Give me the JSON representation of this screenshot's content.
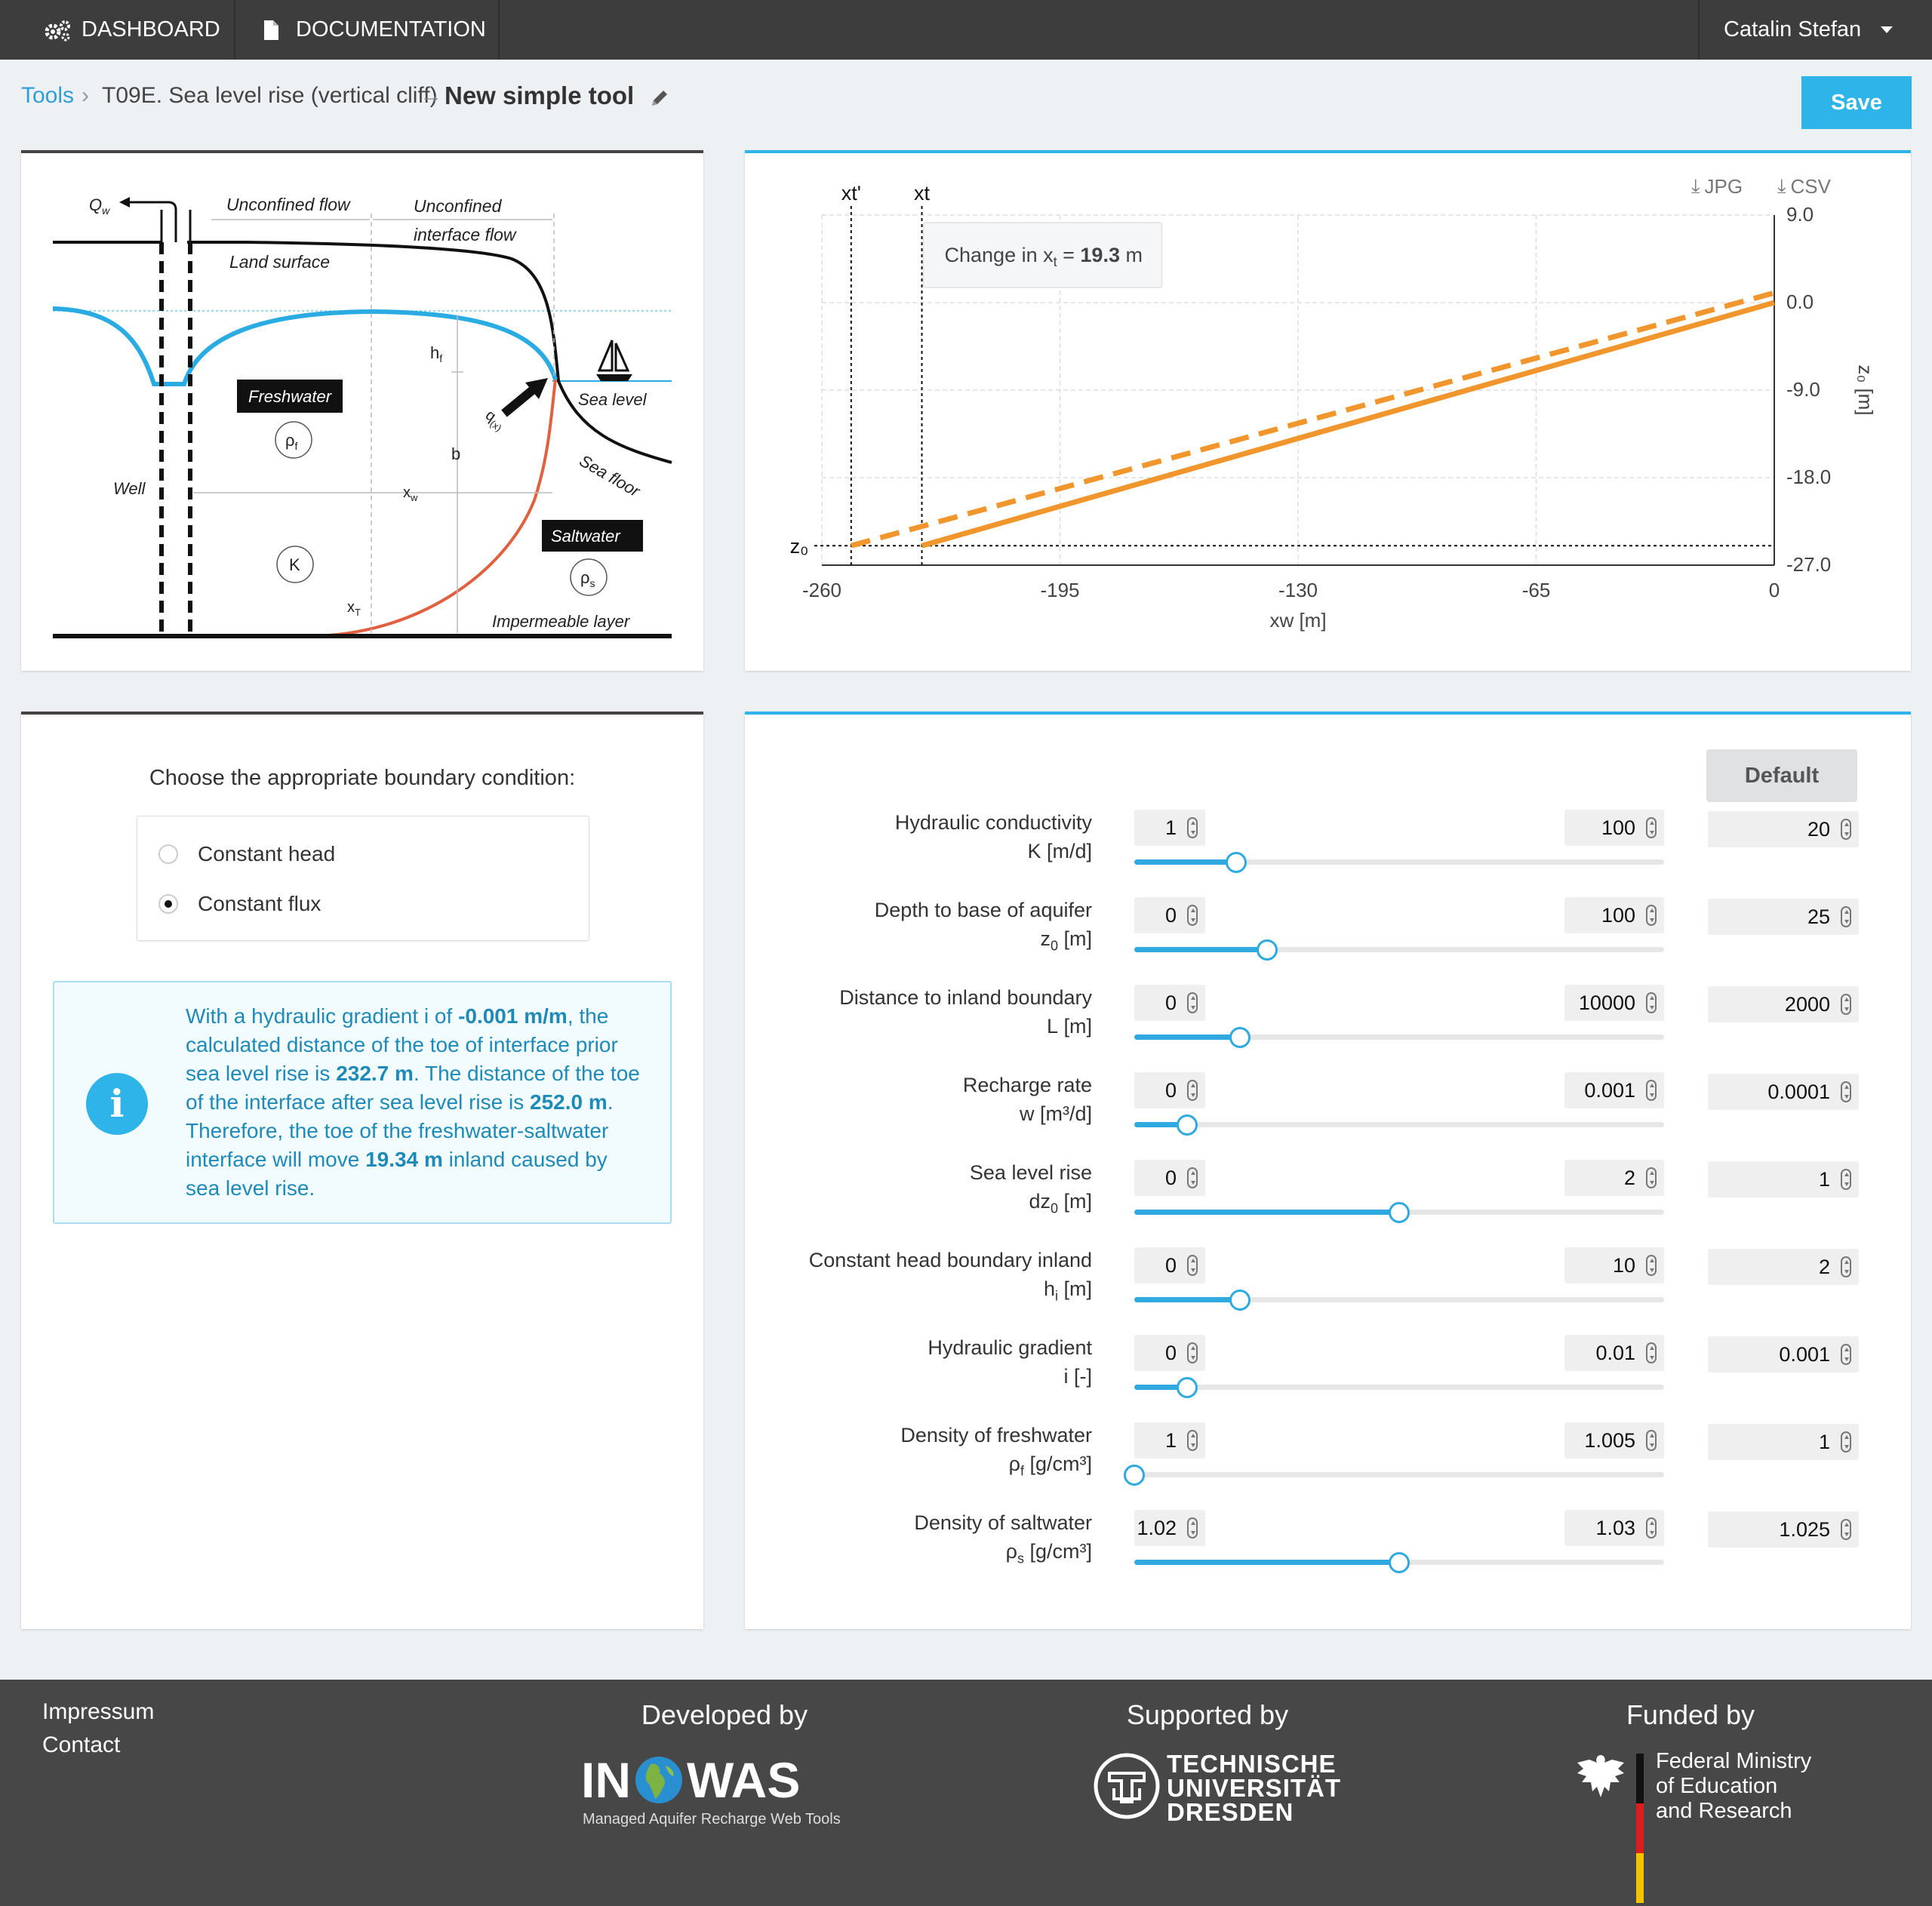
{
  "nav": {
    "dashboard": "DASHBOARD",
    "documentation": "DOCUMENTATION",
    "user": "Catalin Stefan"
  },
  "breadcrumb": {
    "tools": "Tools",
    "tool": "T09E. Sea level rise (vertical cliff)",
    "current": "New simple tool"
  },
  "save_label": "Save",
  "default_label": "Default",
  "diagram": {
    "qw": "Q",
    "qw_sub": "w",
    "unconfined": "Unconfined flow",
    "unconfined_interface_1": "Unconfined",
    "unconfined_interface_2": "interface flow",
    "land_surface": "Land surface",
    "freshwater": "Freshwater",
    "rho_f": "ρ",
    "rho_f_sub": "f",
    "hf": "h",
    "hf_sub": "f",
    "b": "b",
    "qx": "q",
    "qx_sub": "(x)",
    "sea_level": "Sea level",
    "sea_floor": "Sea floor",
    "well": "Well",
    "xw": "x",
    "xw_sub": "w",
    "saltwater": "Saltwater",
    "rho_s": "ρ",
    "rho_s_sub": "s",
    "k": "K",
    "xt": "x",
    "xt_sub": "T",
    "impermeable": "Impermeable layer"
  },
  "chart_buttons": {
    "jpg": "JPG",
    "csv": "CSV"
  },
  "chart_data": {
    "type": "line",
    "xlabel": "xw [m]",
    "ylabel": "z₀ [m]",
    "xlim": [
      -260,
      0
    ],
    "ylim": [
      -27,
      9
    ],
    "x_ticks": [
      "-260",
      "-195",
      "-130",
      "-65",
      "0"
    ],
    "y_ticks": [
      "9.0",
      "0.0",
      "-9.0",
      "-18.0",
      "-27.0"
    ],
    "series": [
      {
        "name": "",
        "style": "dashed",
        "color": "#f0962c",
        "points": [
          [
            -252,
            -25
          ],
          [
            0,
            1
          ]
        ]
      },
      {
        "name": "",
        "style": "solid",
        "color": "#f0962c",
        "points": [
          [
            -232.7,
            -25
          ],
          [
            0,
            0
          ]
        ]
      }
    ],
    "vlines": [
      {
        "label": "xt'",
        "x": -252
      },
      {
        "label": "xt",
        "x": -232.7
      }
    ],
    "hline": {
      "label": "z₀",
      "y": -25
    },
    "tooltip": {
      "prefix": "Change in x",
      "sub": "t",
      "eq": " = ",
      "value": "19.3",
      "unit": " m"
    }
  },
  "boundary": {
    "prompt": "Choose the appropriate boundary condition:",
    "options": [
      "Constant head",
      "Constant flux"
    ],
    "selected": 1
  },
  "info": {
    "t1": "With a hydraulic gradient i of ",
    "b1": "-0.001 m/m",
    "t2": ", the calculated distance of the toe of interface prior sea level rise is ",
    "b2": "232.7 m",
    "t3": ". The distance of the toe of the interface after sea level rise is ",
    "b3": "252.0 m",
    "t4": ". Therefore, the toe of the freshwater-saltwater interface will move ",
    "b4": "19.34 m",
    "t5": " inland caused by sea level rise."
  },
  "params": [
    {
      "name": "Hydraulic conductivity",
      "sym": "K",
      "sub": "",
      "unit": " [m/d]",
      "min": "1",
      "max": "100",
      "value": "20",
      "fraction": 0.192
    },
    {
      "name": "Depth to base of aquifer",
      "sym": "z",
      "sub": "0",
      "unit": " [m]",
      "min": "0",
      "max": "100",
      "value": "25",
      "fraction": 0.25
    },
    {
      "name": "Distance to inland boundary",
      "sym": "L",
      "sub": "",
      "unit": " [m]",
      "min": "0",
      "max": "10000",
      "value": "2000",
      "fraction": 0.2
    },
    {
      "name": "Recharge rate",
      "sym": "w",
      "sub": "",
      "unit": " [m³/d]",
      "min": "0",
      "max": "0.001",
      "value": "0.0001",
      "fraction": 0.1
    },
    {
      "name": "Sea level rise",
      "sym": "dz",
      "sub": "0",
      "unit": " [m]",
      "min": "0",
      "max": "2",
      "value": "1",
      "fraction": 0.5
    },
    {
      "name": "Constant head boundary inland",
      "sym": "h",
      "sub": "i",
      "unit": " [m]",
      "min": "0",
      "max": "10",
      "value": "2",
      "fraction": 0.2
    },
    {
      "name": "Hydraulic gradient",
      "sym": "i",
      "sub": "",
      "unit": " [-]",
      "min": "0",
      "max": "0.01",
      "value": "0.001",
      "fraction": 0.1
    },
    {
      "name": "Density of freshwater",
      "sym": "ρ",
      "sub": "f",
      "unit": " [g/cm³]",
      "min": "1",
      "max": "1.005",
      "value": "1",
      "fraction": 0.0
    },
    {
      "name": "Density of saltwater",
      "sym": "ρ",
      "sub": "s",
      "unit": " [g/cm³]",
      "min": "1.02",
      "max": "1.03",
      "value": "1.025",
      "fraction": 0.5
    }
  ],
  "footer": {
    "impressum": "Impressum",
    "contact": "Contact",
    "developed": "Developed by",
    "supported": "Supported by",
    "funded": "Funded by",
    "inowas_in": "IN",
    "inowas_was": "WAS",
    "inowas_tag": "Managed Aquifer Recharge Web Tools",
    "tud_1": "TECHNISCHE",
    "tud_2": "UNIVERSITÄT",
    "tud_3": "DRESDEN",
    "bmbf_1": "Federal Ministry",
    "bmbf_2": "of Education",
    "bmbf_3": "and Research"
  },
  "colors": {
    "accent": "#2fb4e9",
    "orange": "#f0962c",
    "water": "#2aace2",
    "saltline": "#e06040",
    "topbar": "#3d3d3d",
    "footer": "#474747"
  }
}
